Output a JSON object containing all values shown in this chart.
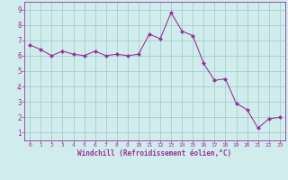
{
  "x": [
    0,
    1,
    2,
    3,
    4,
    5,
    6,
    7,
    8,
    9,
    10,
    11,
    12,
    13,
    14,
    15,
    16,
    17,
    18,
    19,
    20,
    21,
    22,
    23
  ],
  "y": [
    6.7,
    6.4,
    6.0,
    6.3,
    6.1,
    6.0,
    6.3,
    6.0,
    6.1,
    6.0,
    6.1,
    7.4,
    7.1,
    8.8,
    7.6,
    7.3,
    5.5,
    4.4,
    4.5,
    2.9,
    2.5,
    1.3,
    1.9,
    2.0
  ],
  "line_color": "#993399",
  "marker": "D",
  "marker_size": 2,
  "bg_color": "#d0ecec",
  "grid_color": "#a0c8c8",
  "xlabel": "Windchill (Refroidissement éolien,°C)",
  "xlim": [
    -0.5,
    23.5
  ],
  "ylim": [
    0.5,
    9.5
  ],
  "xticks": [
    0,
    1,
    2,
    3,
    4,
    5,
    6,
    7,
    8,
    9,
    10,
    11,
    12,
    13,
    14,
    15,
    16,
    17,
    18,
    19,
    20,
    21,
    22,
    23
  ],
  "yticks": [
    1,
    2,
    3,
    4,
    5,
    6,
    7,
    8,
    9
  ],
  "tick_color": "#993399",
  "label_color": "#993399"
}
